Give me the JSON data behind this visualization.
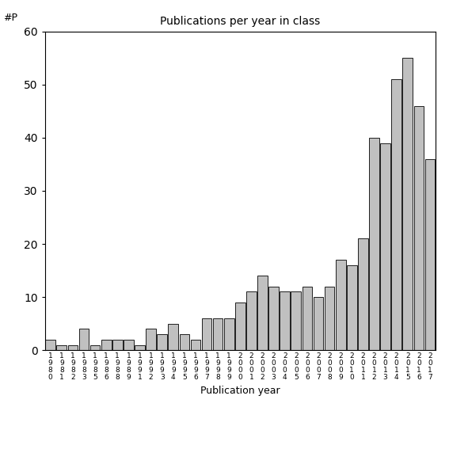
{
  "title": "Publications per year in class",
  "xlabel": "Publication year",
  "ylabel": "#P",
  "ylim": [
    0,
    60
  ],
  "yticks": [
    0,
    10,
    20,
    30,
    40,
    50,
    60
  ],
  "bar_color": "#c0c0c0",
  "bar_edgecolor": "#000000",
  "categories": [
    "1980",
    "1981",
    "1982",
    "1983",
    "1985",
    "1986",
    "1988",
    "1989",
    "1991",
    "1992",
    "1993",
    "1994",
    "1995",
    "1996",
    "1997",
    "1998",
    "1999",
    "2000",
    "2001",
    "2002",
    "2003",
    "2004",
    "2005",
    "2006",
    "2007",
    "2008",
    "2009",
    "2010",
    "2011",
    "2012",
    "2013",
    "2014",
    "2015",
    "2016",
    "2017"
  ],
  "values": [
    2,
    1,
    1,
    4,
    1,
    2,
    2,
    2,
    1,
    4,
    3,
    5,
    3,
    2,
    6,
    6,
    6,
    9,
    11,
    14,
    12,
    11,
    11,
    12,
    10,
    12,
    17,
    16,
    21,
    40,
    39,
    51,
    55,
    46,
    36
  ],
  "background_color": "#ffffff",
  "figsize": [
    5.67,
    5.67
  ],
  "dpi": 100
}
